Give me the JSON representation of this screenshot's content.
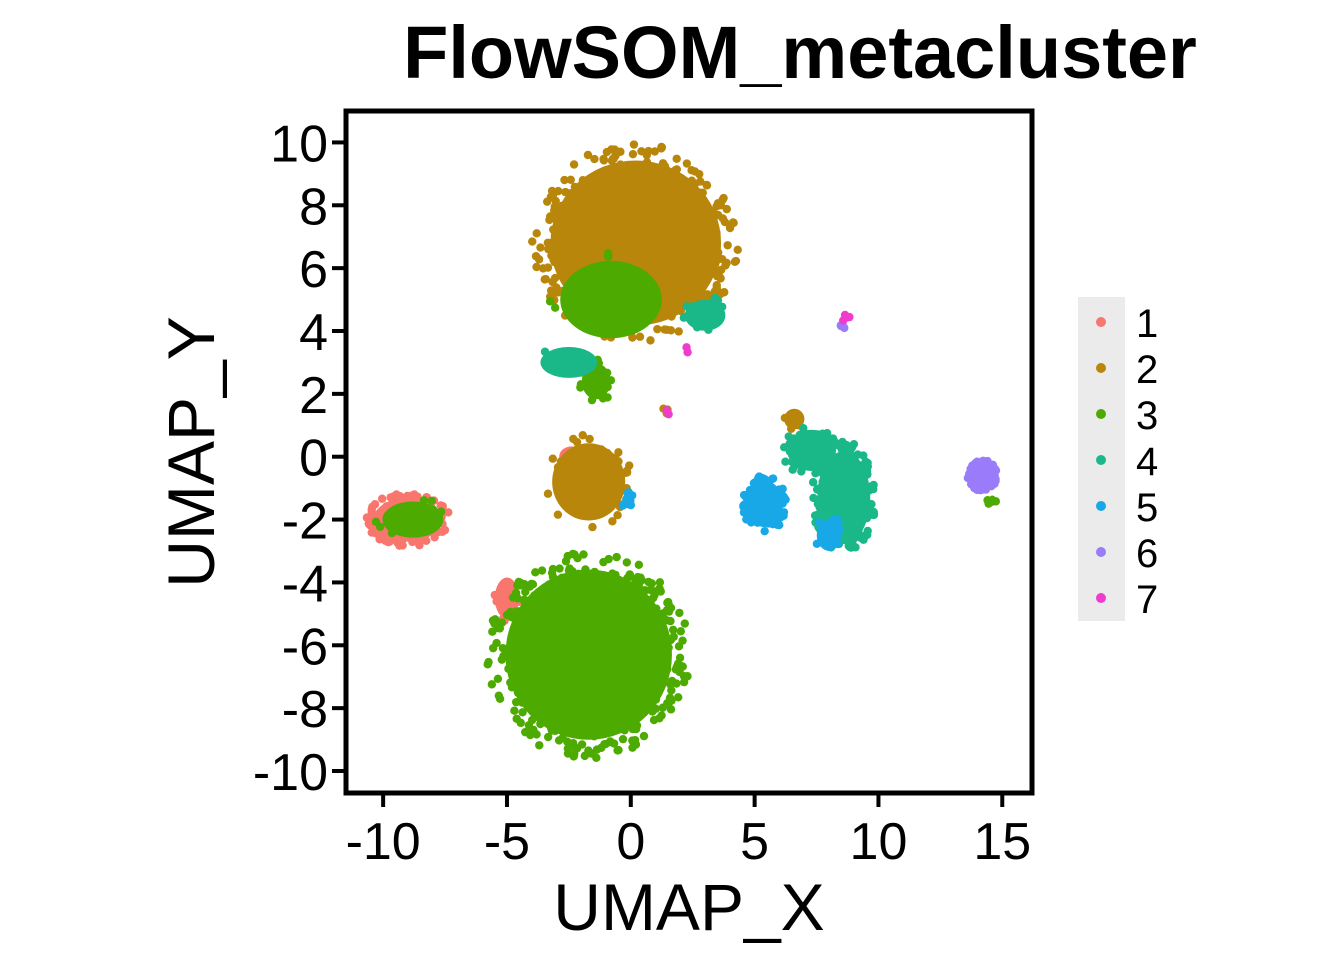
{
  "chart_data": {
    "type": "scatter",
    "title": "FlowSOM_metacluster",
    "xlabel": "UMAP_X",
    "ylabel": "UMAP_Y",
    "xlim": [
      -11.5,
      16.2
    ],
    "ylim": [
      -10.7,
      11.0
    ],
    "x_ticks": [
      -10,
      -5,
      0,
      5,
      10,
      15
    ],
    "y_ticks": [
      10,
      8,
      6,
      4,
      2,
      0,
      -2,
      -4,
      -6,
      -8,
      -10
    ],
    "x_tick_labels": [
      "-10",
      "-5",
      "0",
      "5",
      "10",
      "15"
    ],
    "y_tick_labels": [
      "10",
      "8",
      "6",
      "4",
      "2",
      "0",
      "-2",
      "-4",
      "-6",
      "-8",
      "-10"
    ],
    "grid": false,
    "legend_position": "right",
    "legend_labels": [
      "1",
      "2",
      "3",
      "4",
      "5",
      "6",
      "7"
    ],
    "series": [
      {
        "name": "1",
        "color": "#F8766D",
        "clusters": [
          {
            "cx": -9.0,
            "cy": -2.0,
            "rx": 1.7,
            "ry": 0.85,
            "n": 150
          },
          {
            "cx": -5.0,
            "cy": -4.5,
            "rx": 0.6,
            "ry": 0.8,
            "n": 14
          },
          {
            "cx": -2.4,
            "cy": 0.0,
            "rx": 0.6,
            "ry": 0.4,
            "n": 6
          }
        ]
      },
      {
        "name": "2",
        "color": "#B8860B",
        "clusters": [
          {
            "cx": 0.2,
            "cy": 6.8,
            "rx": 4.2,
            "ry": 3.2,
            "n": 440
          },
          {
            "cx": -1.7,
            "cy": -0.8,
            "rx": 1.8,
            "ry": 1.5,
            "n": 70
          },
          {
            "cx": 1.4,
            "cy": 1.5,
            "rx": 0.2,
            "ry": 0.15,
            "n": 4
          },
          {
            "cx": 6.6,
            "cy": 1.2,
            "rx": 0.5,
            "ry": 0.4,
            "n": 6
          }
        ]
      },
      {
        "name": "3",
        "color": "#4DAA00",
        "clusters": [
          {
            "cx": -1.7,
            "cy": -6.3,
            "rx": 4.1,
            "ry": 3.3,
            "n": 480
          },
          {
            "cx": -1.4,
            "cy": 2.4,
            "rx": 0.7,
            "ry": 0.7,
            "n": 20
          },
          {
            "cx": -8.8,
            "cy": -2.0,
            "rx": 1.5,
            "ry": 0.7,
            "n": 10
          },
          {
            "cx": -0.8,
            "cy": 5.0,
            "rx": 2.5,
            "ry": 1.5,
            "n": 10
          },
          {
            "cx": 14.6,
            "cy": -1.4,
            "rx": 0.2,
            "ry": 0.2,
            "n": 3
          }
        ]
      },
      {
        "name": "4",
        "color": "#1AB888",
        "clusters": [
          {
            "cx": 8.6,
            "cy": -1.3,
            "rx": 1.3,
            "ry": 1.8,
            "n": 190
          },
          {
            "cx": 7.3,
            "cy": 0.2,
            "rx": 1.2,
            "ry": 0.8,
            "n": 50
          },
          {
            "cx": 3.0,
            "cy": 4.5,
            "rx": 1.0,
            "ry": 0.6,
            "n": 14
          },
          {
            "cx": -2.5,
            "cy": 3.0,
            "rx": 1.4,
            "ry": 0.6,
            "n": 8
          }
        ]
      },
      {
        "name": "5",
        "color": "#18A8E8",
        "clusters": [
          {
            "cx": 5.4,
            "cy": -1.5,
            "rx": 0.9,
            "ry": 0.9,
            "n": 90
          },
          {
            "cx": 8.0,
            "cy": -2.5,
            "rx": 0.6,
            "ry": 0.6,
            "n": 12
          },
          {
            "cx": -0.1,
            "cy": -1.4,
            "rx": 0.3,
            "ry": 0.3,
            "n": 6
          }
        ]
      },
      {
        "name": "6",
        "color": "#9A7CFA",
        "clusters": [
          {
            "cx": 14.2,
            "cy": -0.6,
            "rx": 0.6,
            "ry": 0.5,
            "n": 70
          },
          {
            "cx": 8.6,
            "cy": 4.2,
            "rx": 0.15,
            "ry": 0.15,
            "n": 3
          }
        ]
      },
      {
        "name": "7",
        "color": "#F03CCE",
        "clusters": [
          {
            "cx": 8.7,
            "cy": 4.4,
            "rx": 0.2,
            "ry": 0.12,
            "n": 5
          },
          {
            "cx": 1.5,
            "cy": 1.4,
            "rx": 0.1,
            "ry": 0.1,
            "n": 2
          },
          {
            "cx": 2.3,
            "cy": 3.4,
            "rx": 0.1,
            "ry": 0.1,
            "n": 2
          }
        ]
      }
    ]
  }
}
